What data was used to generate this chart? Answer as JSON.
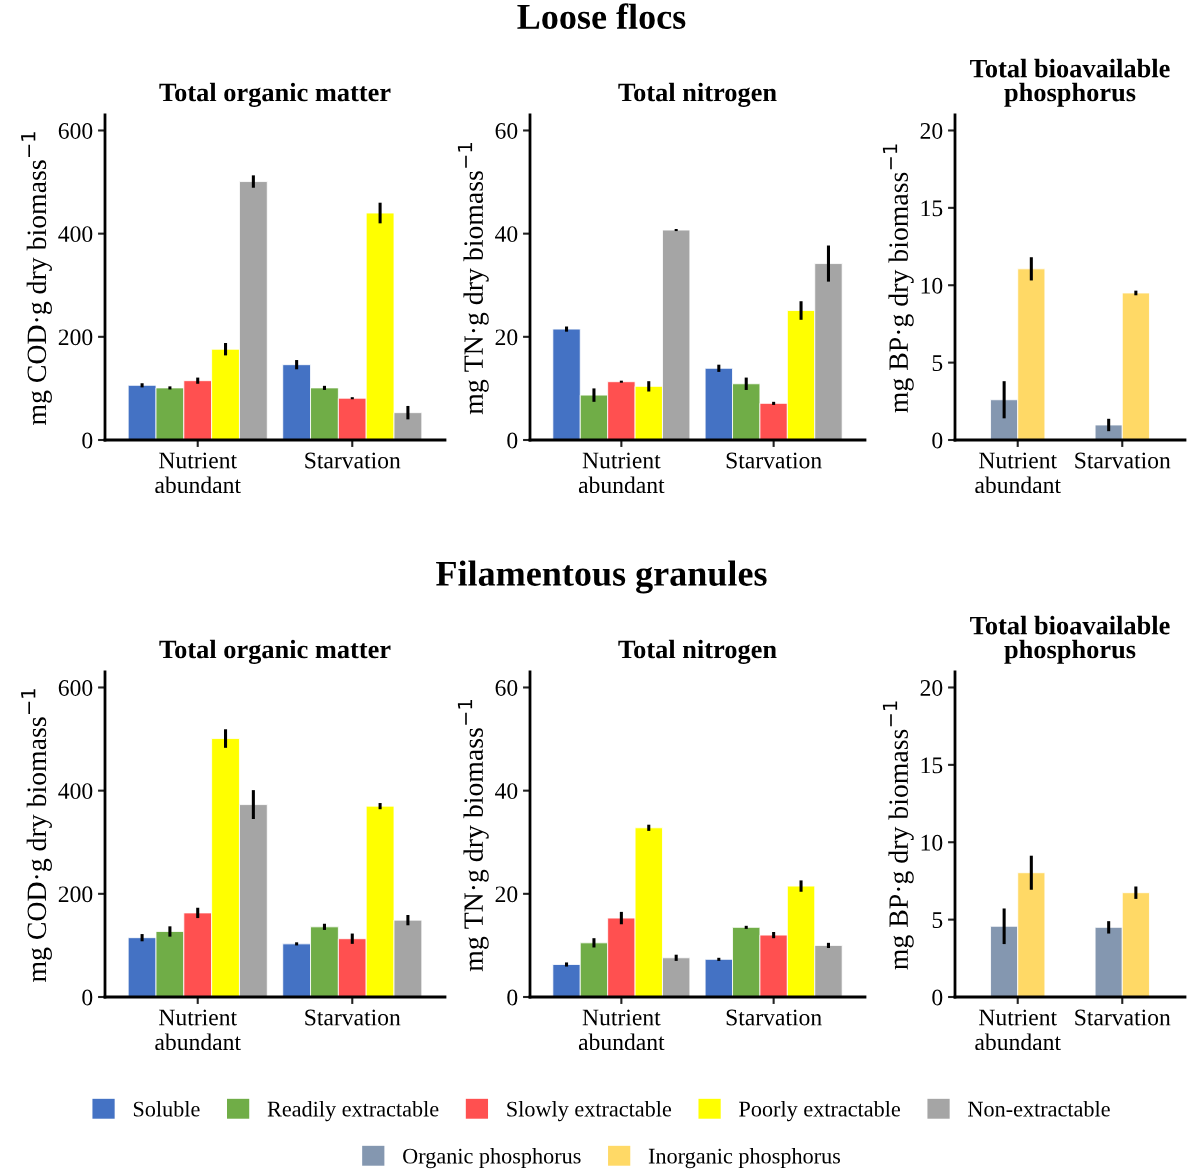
{
  "chart_data": [
    {
      "type": "bar",
      "title": "Total organic matter",
      "ylabel": "mg COD·g dry biomass$^{−1}$",
      "annotations": [
        "Loose flocs"
      ],
      "categories": [
        "Nutrient\nabundant",
        "Starvation"
      ],
      "ylim": [
        0,
        630
      ],
      "yticks": [
        0,
        200,
        400,
        600
      ],
      "grid": false,
      "legend": "bottom",
      "series": [
        {
          "name": "Soluble",
          "color": "#4472c4",
          "values": [
            106,
            146
          ],
          "errors": [
            4,
            9
          ]
        },
        {
          "name": "Readily extractable",
          "color": "#70ad47",
          "values": [
            101,
            101
          ],
          "errors": [
            3,
            4
          ]
        },
        {
          "name": "Slowly extractable",
          "color": "#ff5050",
          "values": [
            115,
            81
          ],
          "errors": [
            6,
            2
          ]
        },
        {
          "name": "Poorly extractable",
          "color": "#ffff00",
          "values": [
            176,
            440
          ],
          "errors": [
            12,
            20
          ]
        },
        {
          "name": "Non-extractable",
          "color": "#a5a5a5",
          "values": [
            501,
            53
          ],
          "errors": [
            12,
            13
          ]
        }
      ]
    },
    {
      "type": "bar",
      "title": "Total nitrogen",
      "ylabel": "mg TN·g dry biomass$^{−1}$",
      "categories": [
        "Nutrient\nabundant",
        "Starvation"
      ],
      "ylim": [
        0,
        63
      ],
      "yticks": [
        0,
        20,
        40,
        60
      ],
      "grid": false,
      "series": [
        {
          "color": "#4472c4",
          "values": [
            21.5,
            13.9
          ],
          "errors": [
            0.5,
            0.7
          ]
        },
        {
          "color": "#70ad47",
          "values": [
            8.7,
            10.9
          ],
          "errors": [
            1.3,
            1.2
          ]
        },
        {
          "color": "#ff5050",
          "values": [
            11.3,
            7.1
          ],
          "errors": [
            0.2,
            0.3
          ]
        },
        {
          "color": "#ffff00",
          "values": [
            10.4,
            25.1
          ],
          "errors": [
            1.0,
            1.8
          ]
        },
        {
          "color": "#a5a5a5",
          "values": [
            40.7,
            34.2
          ],
          "errors": [
            0.2,
            3.5
          ]
        }
      ]
    },
    {
      "type": "bar",
      "title": "Total bioavailable\nphosphorus",
      "ylabel": "mg BP·g dry biomass$^{−1}$",
      "categories": [
        "Nutrient\nabundant",
        "Starvation"
      ],
      "ylim": [
        0,
        21
      ],
      "yticks": [
        0,
        5,
        10,
        15,
        20
      ],
      "grid": false,
      "legend": "bottom",
      "series": [
        {
          "name": "Organic phosphorus",
          "color": "#8497b0",
          "values": [
            2.6,
            0.97
          ],
          "errors": [
            1.2,
            0.4
          ]
        },
        {
          "name": "Inorganic phosphorus",
          "color": "#ffd966",
          "values": [
            11.06,
            9.5
          ],
          "errors": [
            0.75,
            0.15
          ]
        }
      ]
    },
    {
      "type": "bar",
      "title": "Total organic matter",
      "ylabel": "mg COD·g dry biomass$^{−1}$",
      "annotations": [
        "Filamentous granules"
      ],
      "categories": [
        "Nutrient\nabundant",
        "Starvation"
      ],
      "ylim": [
        0,
        630
      ],
      "yticks": [
        0,
        200,
        400,
        600
      ],
      "grid": false,
      "series": [
        {
          "color": "#4472c4",
          "values": [
            115,
            103
          ],
          "errors": [
            7,
            3
          ]
        },
        {
          "color": "#70ad47",
          "values": [
            127,
            136
          ],
          "errors": [
            10,
            6
          ]
        },
        {
          "color": "#ff5050",
          "values": [
            163,
            113
          ],
          "errors": [
            10,
            10
          ]
        },
        {
          "color": "#ffff00",
          "values": [
            501,
            370
          ],
          "errors": [
            18,
            6
          ]
        },
        {
          "color": "#a5a5a5",
          "values": [
            373,
            149
          ],
          "errors": [
            28,
            10
          ]
        }
      ]
    },
    {
      "type": "bar",
      "title": "Total nitrogen",
      "ylabel": "mg TN·g dry biomass$^{−1}$",
      "categories": [
        "Nutrient\nabundant",
        "Starvation"
      ],
      "ylim": [
        0,
        63
      ],
      "yticks": [
        0,
        20,
        40,
        60
      ],
      "grid": false,
      "series": [
        {
          "color": "#4472c4",
          "values": [
            6.3,
            7.3
          ],
          "errors": [
            0.4,
            0.3
          ]
        },
        {
          "color": "#70ad47",
          "values": [
            10.5,
            13.5
          ],
          "errors": [
            0.9,
            0.3
          ]
        },
        {
          "color": "#ff5050",
          "values": [
            15.3,
            12.0
          ],
          "errors": [
            1.2,
            0.6
          ]
        },
        {
          "color": "#ffff00",
          "values": [
            32.8,
            21.5
          ],
          "errors": [
            0.6,
            1.1
          ]
        },
        {
          "color": "#a5a5a5",
          "values": [
            7.6,
            10.0
          ],
          "errors": [
            0.6,
            0.5
          ]
        }
      ]
    },
    {
      "type": "bar",
      "title": "Total bioavailable\nphosphorus",
      "ylabel": "mg BP·g dry biomass$^{−1}$",
      "categories": [
        "Nutrient\nabundant",
        "Starvation"
      ],
      "ylim": [
        0,
        21
      ],
      "yticks": [
        0,
        5,
        10,
        15,
        20
      ],
      "grid": false,
      "series": [
        {
          "color": "#8497b0",
          "values": [
            4.57,
            4.5
          ],
          "errors": [
            1.15,
            0.4
          ]
        },
        {
          "color": "#ffd966",
          "values": [
            8.03,
            6.74
          ],
          "errors": [
            1.1,
            0.4
          ]
        }
      ]
    }
  ]
}
